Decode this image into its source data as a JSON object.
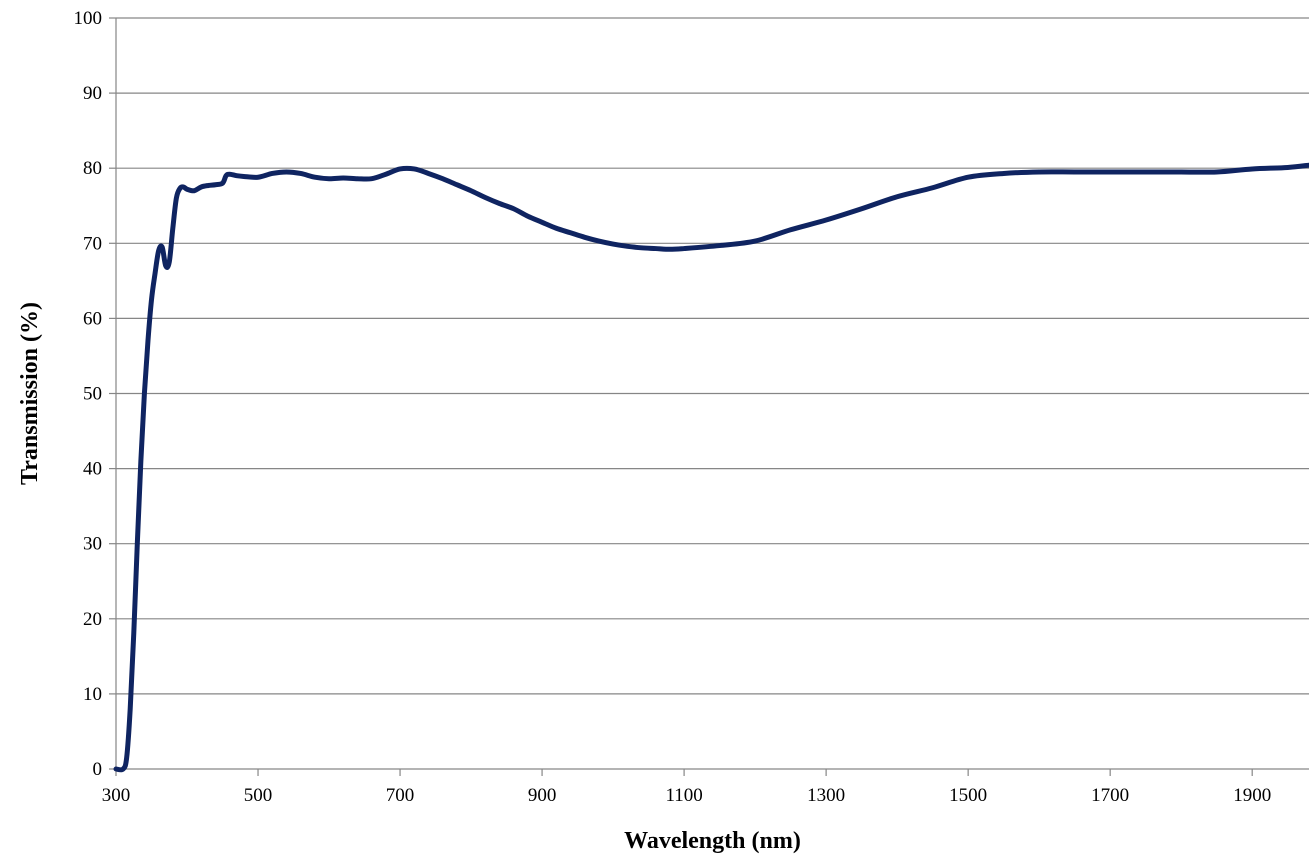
{
  "chart_data": {
    "type": "line",
    "title": "",
    "xlabel": "Wavelength (nm)",
    "ylabel": "Transmission (%)",
    "xlim": [
      300,
      1980
    ],
    "ylim": [
      0,
      100
    ],
    "x_ticks": [
      300,
      500,
      700,
      900,
      1100,
      1300,
      1500,
      1700,
      1900
    ],
    "y_ticks": [
      0,
      10,
      20,
      30,
      40,
      50,
      60,
      70,
      80,
      90,
      100
    ],
    "grid": "horizontal",
    "legend": "none",
    "series": [
      {
        "color": "#0f2461",
        "x": [
          300,
          310,
          315,
          320,
          325,
          330,
          335,
          340,
          345,
          350,
          355,
          360,
          365,
          370,
          375,
          380,
          385,
          390,
          395,
          400,
          410,
          420,
          430,
          440,
          450,
          455,
          460,
          470,
          480,
          500,
          520,
          540,
          560,
          580,
          600,
          620,
          640,
          660,
          680,
          700,
          720,
          740,
          760,
          780,
          800,
          820,
          840,
          860,
          880,
          900,
          920,
          940,
          960,
          980,
          1000,
          1020,
          1040,
          1060,
          1080,
          1100,
          1150,
          1200,
          1250,
          1300,
          1350,
          1400,
          1450,
          1500,
          1550,
          1600,
          1650,
          1700,
          1750,
          1800,
          1850,
          1900,
          1950,
          1980
        ],
        "y": [
          0,
          0,
          1.5,
          8,
          18,
          30,
          41,
          50,
          57,
          62.5,
          66,
          69,
          69.5,
          67,
          67.5,
          72,
          76,
          77.3,
          77.5,
          77.2,
          77,
          77.5,
          77.7,
          77.8,
          78,
          79,
          79.2,
          79,
          78.9,
          78.8,
          79.3,
          79.5,
          79.3,
          78.8,
          78.6,
          78.7,
          78.6,
          78.6,
          79.2,
          79.9,
          79.9,
          79.3,
          78.6,
          77.8,
          77,
          76.1,
          75.3,
          74.6,
          73.6,
          72.8,
          72,
          71.4,
          70.8,
          70.3,
          69.9,
          69.6,
          69.4,
          69.3,
          69.2,
          69.3,
          69.7,
          70.3,
          71.8,
          73.1,
          74.6,
          76.2,
          77.4,
          78.8,
          79.3,
          79.5,
          79.5,
          79.5,
          79.5,
          79.5,
          79.5,
          79.9,
          80.1,
          80.4
        ]
      }
    ]
  }
}
